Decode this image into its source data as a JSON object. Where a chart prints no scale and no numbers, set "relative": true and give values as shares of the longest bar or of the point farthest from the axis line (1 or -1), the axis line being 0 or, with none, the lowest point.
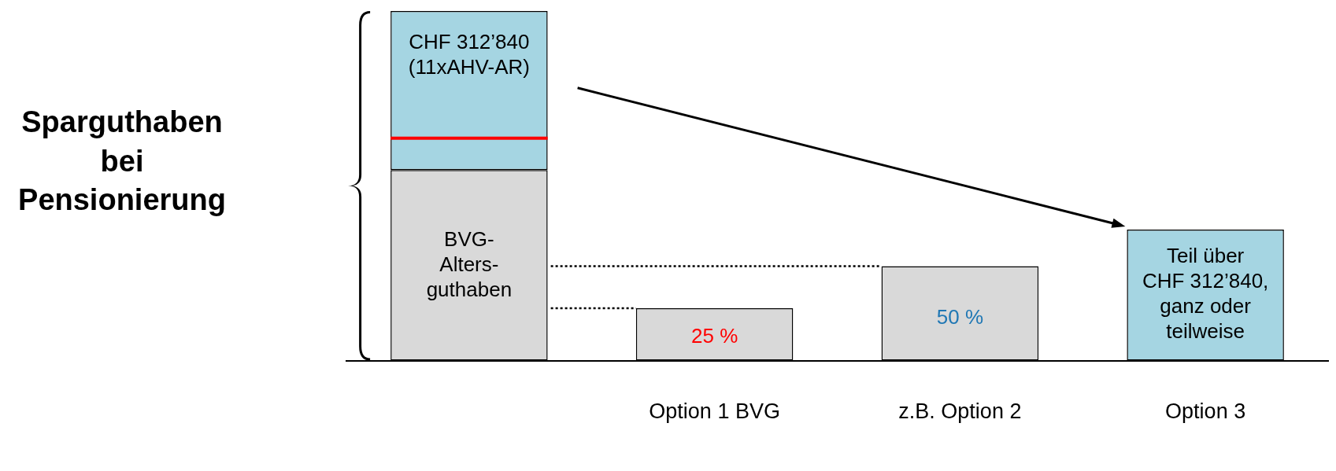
{
  "chart_data": {
    "type": "bar",
    "relative": true,
    "stacked": true,
    "ylabel": "Sparguthaben bei Pensionierung",
    "categories": [
      null,
      "Option 1 BVG",
      "z.B. Option 2",
      "Option 3"
    ],
    "series": [
      {
        "color": "#d9d9d9",
        "values": [
          0.545,
          0.15,
          0.27,
          null
        ]
      },
      {
        "color": "#a5d5e2",
        "values": [
          0.455,
          null,
          null,
          0.375
        ]
      }
    ],
    "ref_lines": [
      {
        "axis": "y",
        "value": 0.636,
        "color": "#ff0000",
        "line_style": "solid"
      },
      {
        "axis": "y",
        "value": 0.15,
        "color": "#000000",
        "line_style": "dotted"
      },
      {
        "axis": "y",
        "value": 0.27,
        "color": "#000000",
        "line_style": "dotted"
      }
    ],
    "annotations": [
      "CHF 312’840\n(11xAHV-AR)",
      "BVG-\nAlters-\nguthaben",
      "25 %",
      "50 %",
      "Teil über\nCHF 312’840,\nganz oder\nteilweise"
    ],
    "grid": false,
    "legend": false
  }
}
